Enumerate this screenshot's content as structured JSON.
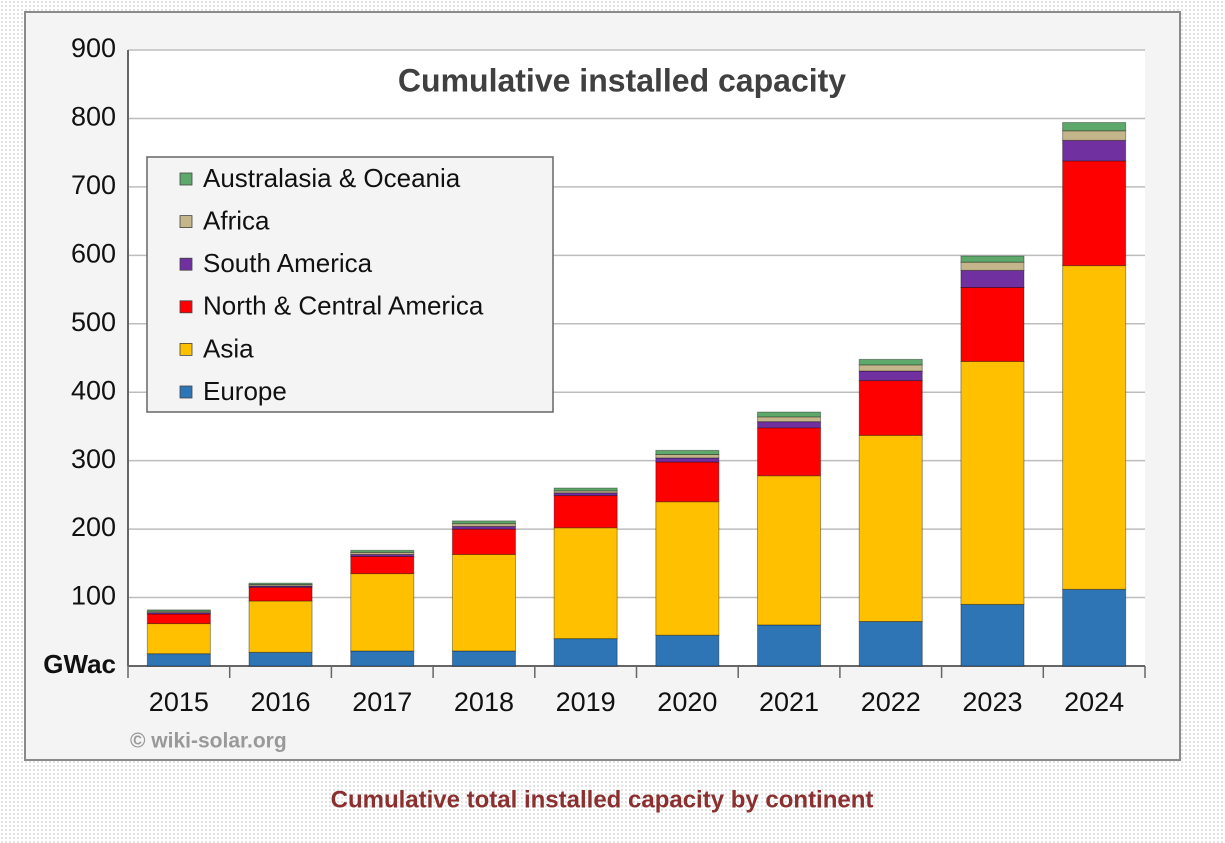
{
  "chart_data": {
    "type": "stacked_bar",
    "title": "Cumulative installed capacity",
    "categories": [
      "2015",
      "2016",
      "2017",
      "2018",
      "2019",
      "2020",
      "2021",
      "2022",
      "2023",
      "2024"
    ],
    "series": [
      {
        "name": "Europe",
        "color": "#2e75b6",
        "values": [
          18,
          20,
          22,
          22,
          40,
          45,
          60,
          65,
          90,
          112
        ]
      },
      {
        "name": "Asia",
        "color": "#ffc000",
        "values": [
          44,
          75,
          113,
          141,
          162,
          195,
          218,
          272,
          355,
          473
        ]
      },
      {
        "name": "North & Central America",
        "color": "#ff0000",
        "values": [
          14,
          20,
          25,
          37,
          47,
          58,
          70,
          80,
          108,
          153
        ]
      },
      {
        "name": "South America",
        "color": "#7030a0",
        "values": [
          2,
          2,
          3,
          4,
          4,
          6,
          9,
          14,
          25,
          30
        ]
      },
      {
        "name": "Africa",
        "color": "#c4b58a",
        "values": [
          2,
          2,
          3,
          4,
          3,
          5,
          7,
          9,
          12,
          14
        ]
      },
      {
        "name": "Australasia & Oceania",
        "color": "#5fa86b",
        "values": [
          2,
          2,
          3,
          4,
          4,
          6,
          7,
          8,
          9,
          12
        ]
      }
    ],
    "ylim": [
      0,
      900
    ],
    "yticks": [
      {
        "value": 0,
        "label": "GWac"
      },
      100,
      200,
      300,
      400,
      500,
      600,
      700,
      800,
      900
    ],
    "grid": true,
    "legend": "upper-left",
    "source": "© wiki-solar.org"
  },
  "caption": "Cumulative total installed capacity by continent"
}
